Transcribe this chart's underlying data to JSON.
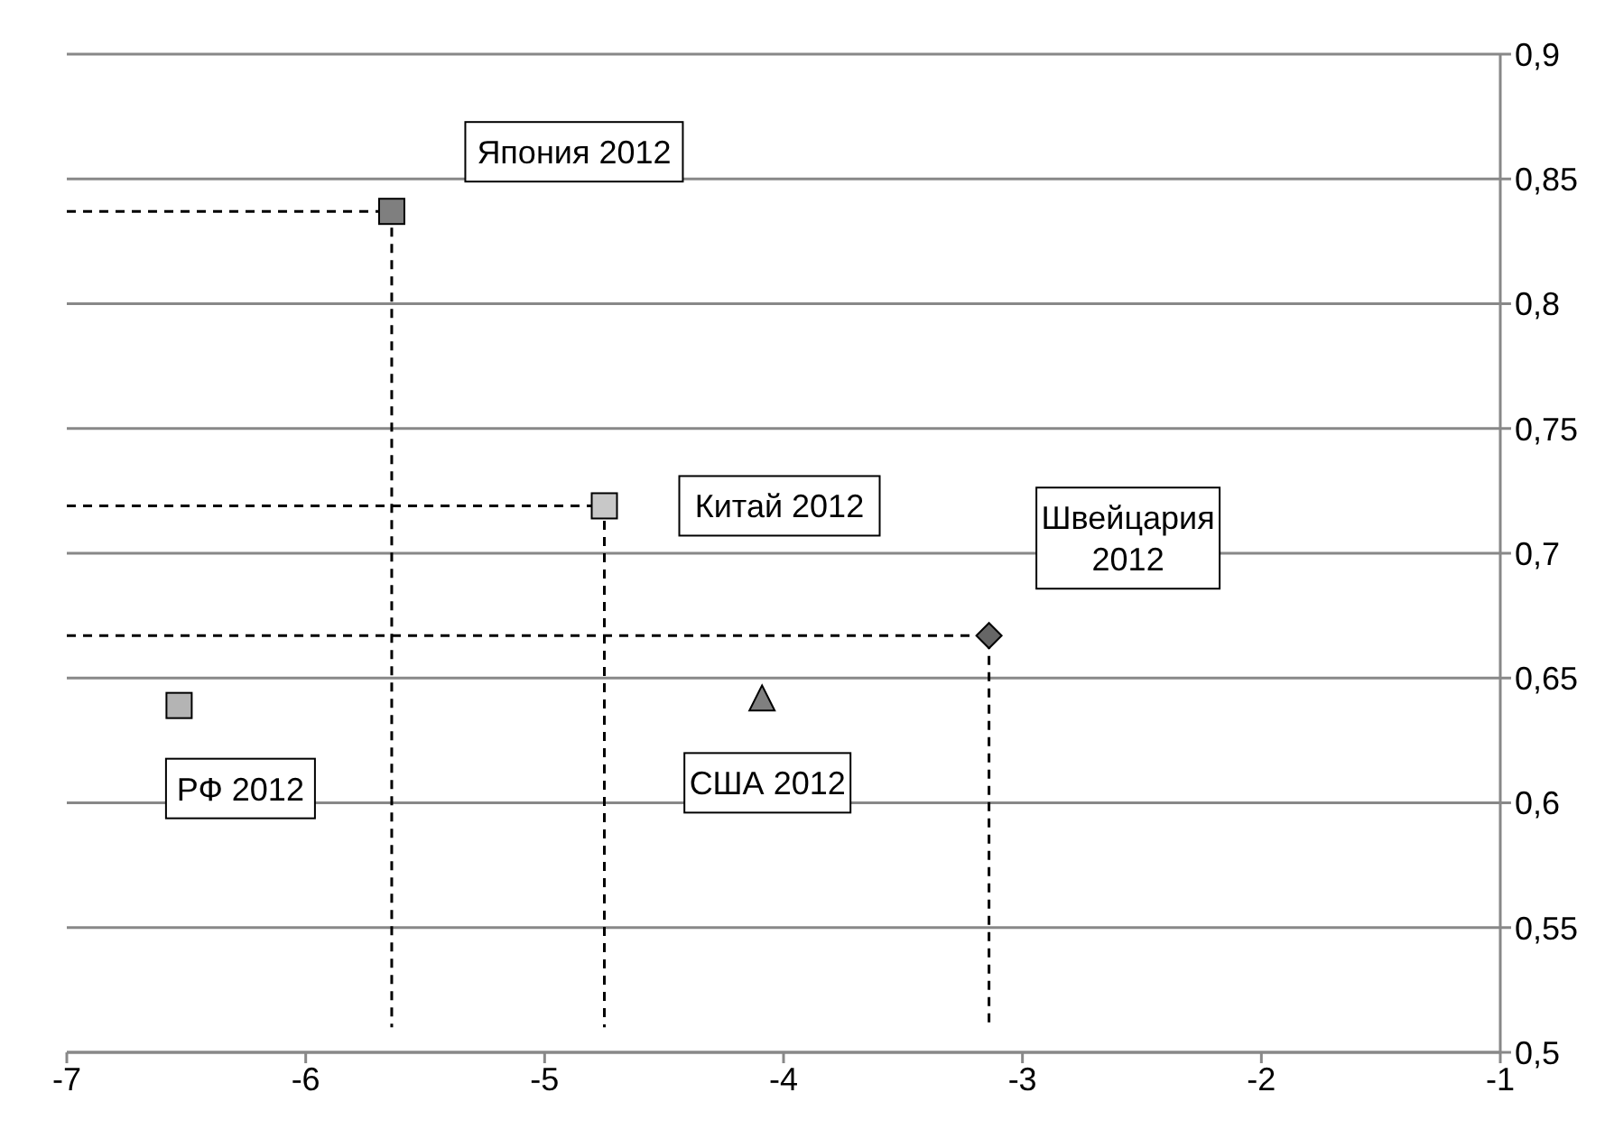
{
  "chart_data": {
    "type": "scatter",
    "xlim": [
      -7,
      -1
    ],
    "xticks": [
      -7,
      -6,
      -5,
      -4,
      -3,
      -2,
      -1
    ],
    "ylim": [
      0.5,
      0.9
    ],
    "yticks": [
      {
        "value": 0.5,
        "label": "0,5"
      },
      {
        "value": 0.55,
        "label": "0,55"
      },
      {
        "value": 0.6,
        "label": "0,6"
      },
      {
        "value": 0.65,
        "label": "0,65"
      },
      {
        "value": 0.7,
        "label": "0,7"
      },
      {
        "value": 0.75,
        "label": "0,75"
      },
      {
        "value": 0.8,
        "label": "0,8"
      },
      {
        "value": 0.85,
        "label": "0,85"
      },
      {
        "value": 0.9,
        "label": "0,9"
      }
    ],
    "grid": "y",
    "legend": false,
    "series": [
      {
        "name": "Япония 2012",
        "color": "#7f7f7f",
        "marker": "square",
        "x": [
          -5.64
        ],
        "values": [
          0.837
        ]
      },
      {
        "name": "Китай 2012",
        "color": "#c8c8c8",
        "marker": "square",
        "x": [
          -4.75
        ],
        "values": [
          0.719
        ]
      },
      {
        "name": "Швейцария 2012",
        "color": "#666666",
        "marker": "diamond",
        "x": [
          -3.14
        ],
        "values": [
          0.667
        ]
      },
      {
        "name": "США 2012",
        "color": "#808080",
        "marker": "triangle",
        "x": [
          -4.09
        ],
        "values": [
          0.642
        ]
      },
      {
        "name": "РФ 2012",
        "color": "#b4b4b4",
        "marker": "square",
        "x": [
          -6.53
        ],
        "values": [
          0.639
        ]
      },
      {
        "type": "line",
        "color": "#000000",
        "marker": "none",
        "line_style": "dashed",
        "x": [
          -7,
          -5.64,
          -5.64
        ],
        "values": [
          0.837,
          0.837,
          0.51
        ]
      },
      {
        "type": "line",
        "color": "#000000",
        "marker": "none",
        "line_style": "dashed",
        "x": [
          -7,
          -4.75,
          -4.75
        ],
        "values": [
          0.719,
          0.719,
          0.51
        ]
      },
      {
        "type": "line",
        "color": "#000000",
        "marker": "none",
        "line_style": "dashed",
        "x": [
          -7,
          -3.14,
          -3.14
        ],
        "values": [
          0.667,
          0.667,
          0.51
        ]
      }
    ]
  }
}
